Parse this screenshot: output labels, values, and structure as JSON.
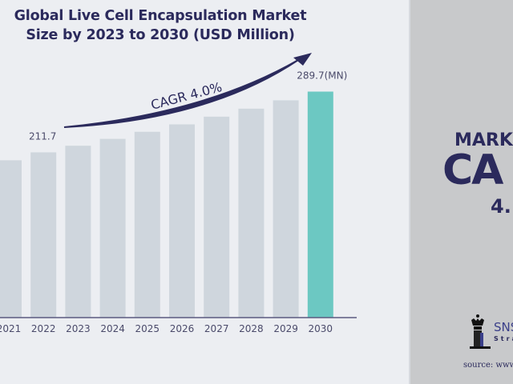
{
  "chart_data": {
    "type": "bar",
    "title": "Global Live Cell Encapsulation Market Size by 2023 to 2030 (USD Million)",
    "title_lines": [
      "Global Live Cell Encapsulation Market",
      "Size by 2023 to 2030 (USD Million)"
    ],
    "categories": [
      "2021",
      "2022",
      "2023",
      "2024",
      "2025",
      "2026",
      "2027",
      "2028",
      "2029",
      "2030"
    ],
    "values": [
      201.5,
      211.7,
      220.2,
      229.0,
      238.1,
      247.6,
      257.5,
      267.8,
      278.5,
      289.7
    ],
    "data_labels": {
      "2022": "211.7",
      "2030": "289.7(MN)"
    },
    "annotation": "CAGR 4.0%",
    "ylim": [
      0,
      300
    ],
    "grid": false,
    "colors": {
      "bar": "#cfd6dd",
      "highlight_bar": "#6cc8c2",
      "axis": "#5b5a80",
      "arrow": "#2b2a5c",
      "text": "#2b2a5c"
    }
  },
  "side_panel": {
    "line1": "MARK",
    "line2": "CA",
    "line3": "4.",
    "logo_text": "SNS",
    "logo_subtext": "Stra",
    "source": "source: www"
  }
}
